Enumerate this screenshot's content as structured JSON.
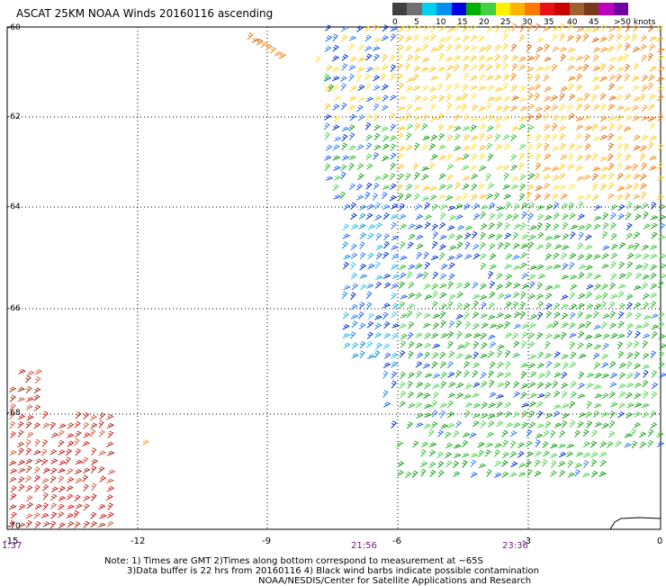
{
  "title": "ASCAT 25KM NOAA Winds 20160116 ascending",
  "legend": {
    "ticks": [
      "0",
      "5",
      "10",
      "15",
      "20",
      "25",
      "30",
      "35",
      "40",
      "45",
      ">50 knots"
    ],
    "colors": [
      "#404040",
      "#707070",
      "#00d0f0",
      "#0090f0",
      "#0000e0",
      "#00b000",
      "#40d040",
      "#ffee00",
      "#ffb400",
      "#ff7800",
      "#e81010",
      "#c80000",
      "#a06030",
      "#7a3a1a",
      "#c000c0",
      "#7000a0"
    ]
  },
  "axes": {
    "latitudes": [
      "-60",
      "-62",
      "-64",
      "-66",
      "-68",
      "-70"
    ],
    "longitudes": [
      "-15",
      "-12",
      "-9",
      "-6",
      "-3",
      "0"
    ]
  },
  "times": [
    "1:37",
    "21:56",
    "23:36"
  ],
  "notes": {
    "line1": "Note: 1) Times are GMT 2)Times along bottom correspond to measurement at ~65S",
    "line2": "3)Data buffer is 22 hrs from 20160116 4) Black wind barbs indicate possible contamination",
    "line3": "NOAA/NESDIS/Center for Satellite Applications and Research"
  },
  "wind_regions": [
    {
      "name": "north-band",
      "color": "#ffd21e",
      "dominant": "yellow/orange"
    },
    {
      "name": "northeast",
      "color": "#ff8c1a",
      "dominant": "orange"
    },
    {
      "name": "center",
      "color": "#30c030",
      "dominant": "green"
    },
    {
      "name": "west-band",
      "color": "#2080ff",
      "dominant": "blue/cyan"
    },
    {
      "name": "southwest",
      "color": "#e02020",
      "dominant": "red/brown"
    }
  ]
}
